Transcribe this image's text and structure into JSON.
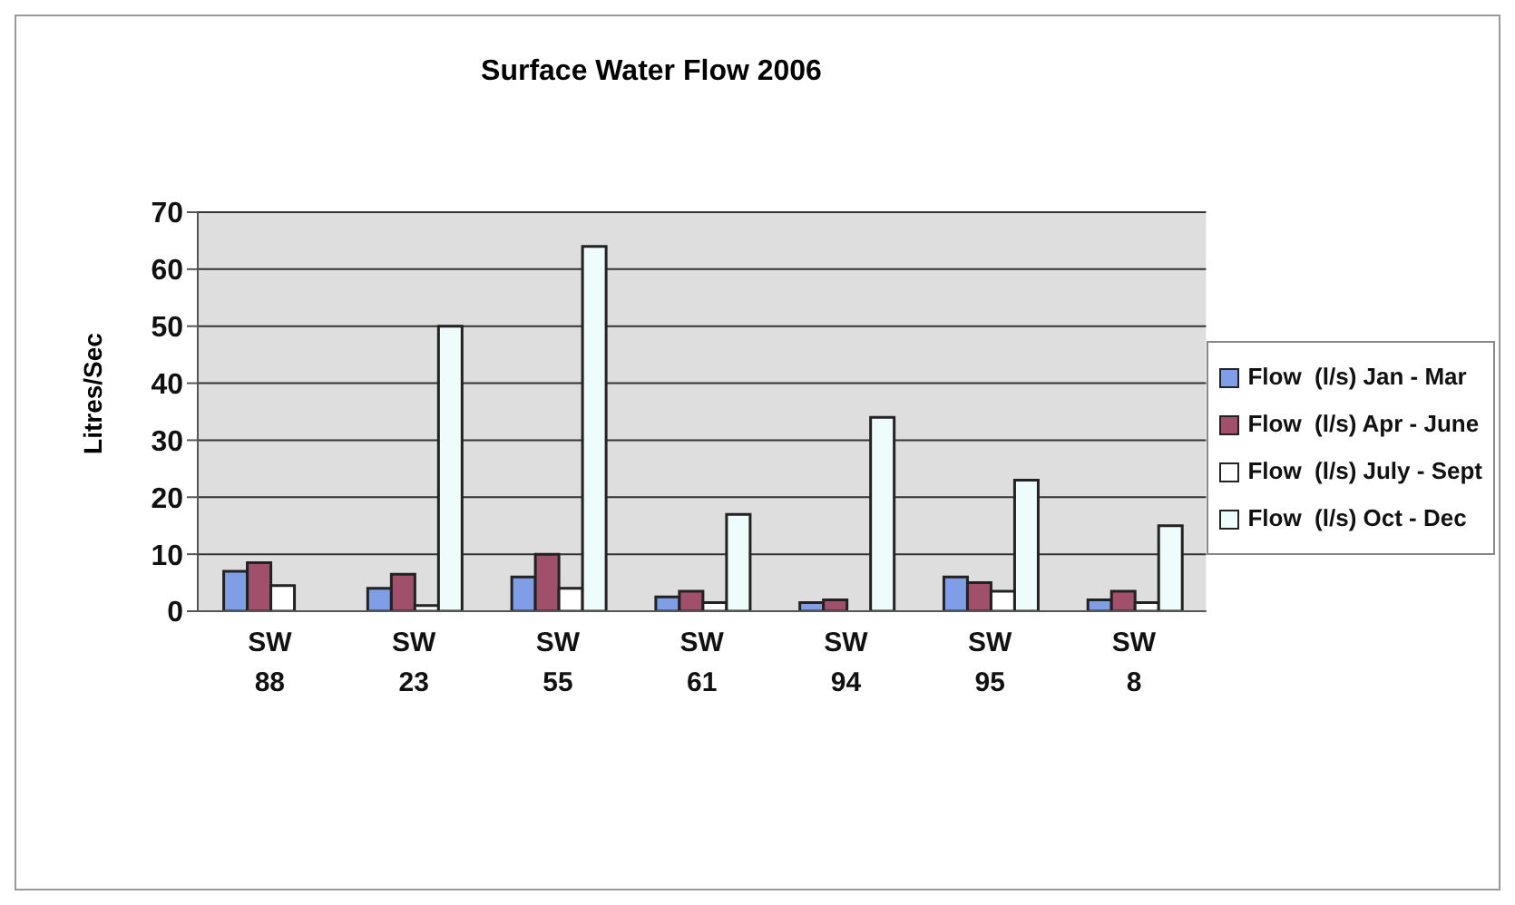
{
  "chart_data": {
    "type": "bar",
    "title": "Surface Water Flow 2006",
    "ylabel": "Litres/Sec",
    "categories": [
      "SW 88",
      "SW 23",
      "SW 55",
      "SW 61",
      "SW 94",
      "SW 95",
      "SW 8"
    ],
    "series": [
      {
        "name": "Flow  (l/s) Jan - Mar",
        "color": "#7f9ee6",
        "values": [
          7,
          4,
          6,
          2.5,
          1.5,
          6,
          2
        ]
      },
      {
        "name": "Flow  (l/s) Apr - June",
        "color": "#a0506a",
        "values": [
          8.5,
          6.5,
          10,
          3.5,
          2,
          5,
          3.5
        ]
      },
      {
        "name": "Flow  (l/s) July - Sept",
        "color": "#ffffff",
        "values": [
          4.5,
          1,
          4,
          1.5,
          0,
          3.5,
          1.5
        ]
      },
      {
        "name": "Flow  (l/s) Oct - Dec",
        "color": "#eefcfc",
        "values": [
          0,
          50,
          64,
          17,
          34,
          23,
          15
        ]
      }
    ],
    "ylim": [
      0,
      70
    ],
    "yticks": [
      0,
      10,
      20,
      30,
      40,
      50,
      60,
      70
    ],
    "grid": "y",
    "legend": "right"
  }
}
